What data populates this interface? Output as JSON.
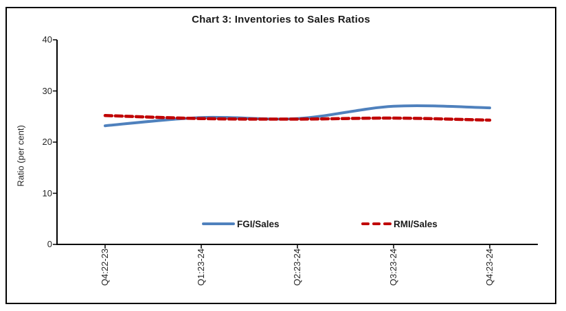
{
  "chart_data": {
    "type": "line",
    "title": "Chart 3: Inventories to Sales Ratios",
    "categories": [
      "Q4:22-23",
      "Q1:23-24",
      "Q2:23-24",
      "Q3:23-24",
      "Q4:23-24"
    ],
    "series": [
      {
        "name": "FGI/Sales",
        "values": [
          23.2,
          24.8,
          24.6,
          27.0,
          26.7
        ],
        "color": "#4F81BD",
        "style": "solid"
      },
      {
        "name": "RMI/Sales",
        "values": [
          25.2,
          24.6,
          24.5,
          24.7,
          24.3
        ],
        "color": "#C00000",
        "style": "dashed"
      }
    ],
    "xlabel": "",
    "ylabel": "Ratio (per cent)",
    "ylim": [
      0,
      40
    ],
    "yticks": [
      0,
      10,
      20,
      30,
      40
    ],
    "grid": false,
    "legend_position": "bottom-center-inside",
    "smooth": true,
    "axis_color": "#000000",
    "text_color": "#262626"
  }
}
